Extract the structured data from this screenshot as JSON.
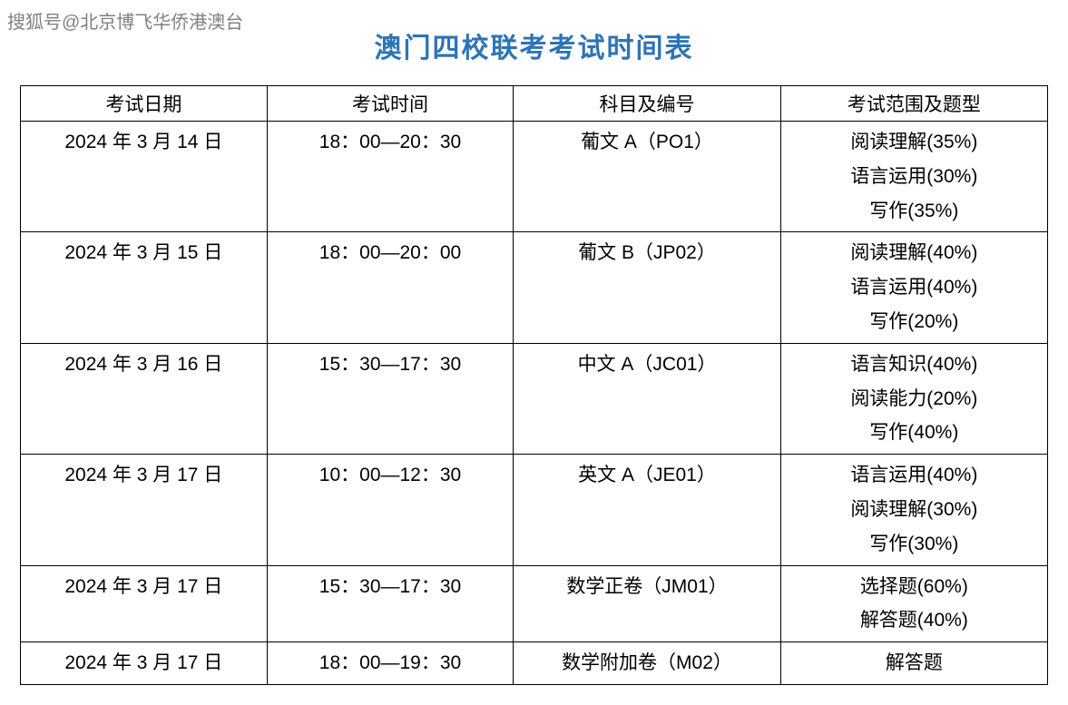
{
  "watermark": "搜狐号@北京博飞华侨港澳台",
  "title": "澳门四校联考考试时间表",
  "table": {
    "columns": [
      "考试日期",
      "考试时间",
      "科目及编号",
      "考试范围及题型"
    ],
    "rows": [
      {
        "date": "2024 年 3 月 14 日",
        "time": "18：00—20：30",
        "subject": "葡文 A（PO1）",
        "scope": "阅读理解(35%)\n语言运用(30%)\n写作(35%)"
      },
      {
        "date": "2024 年 3 月 15 日",
        "time": "18：00—20：00",
        "subject": "葡文 B（JP02）",
        "scope": "阅读理解(40%)\n语言运用(40%)\n写作(20%)"
      },
      {
        "date": "2024 年 3 月 16 日",
        "time": "15：30—17：30",
        "subject": "中文 A（JC01）",
        "scope": "语言知识(40%)\n阅读能力(20%)\n写作(40%)"
      },
      {
        "date": "2024 年 3 月 17 日",
        "time": "10：00—12：30",
        "subject": "英文 A（JE01）",
        "scope": "语言运用(40%)\n阅读理解(30%)\n写作(30%)"
      },
      {
        "date": "2024 年 3 月 17 日",
        "time": "15：30—17：30",
        "subject": "数学正卷（JM01）",
        "scope": "选择题(60%)\n解答题(40%)"
      },
      {
        "date": "2024 年 3 月 17 日",
        "time": "18：00—19：30",
        "subject": "数学附加卷（M02）",
        "scope": "解答题"
      }
    ],
    "styling": {
      "title_color": "#2e74b5",
      "title_fontsize": 30,
      "border_color": "#000000",
      "background_color": "#ffffff",
      "text_color": "#000000",
      "cell_fontsize": 21,
      "column_widths_pct": [
        24,
        24,
        26,
        26
      ]
    }
  }
}
